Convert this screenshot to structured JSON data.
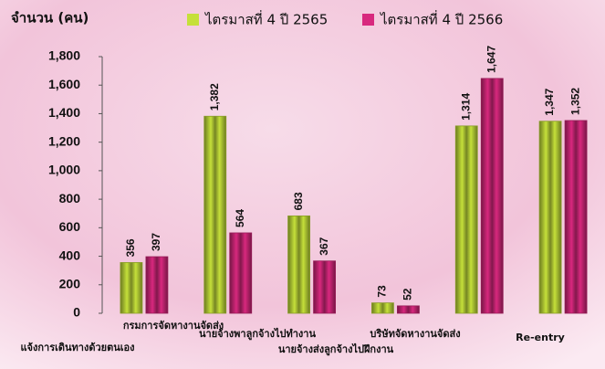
{
  "chart_data": {
    "type": "bar",
    "y_label": "จำนวน (คน)",
    "categories": [
      "แจ้งการเดินทางด้วยตนเอง",
      "กรมการจัดหางานจัดส่ง",
      "นายจ้างพาลูกจ้างไปทำงาน",
      "นายจ้างส่งลูกจ้างไปฝึกงาน",
      "บริษัทจัดหางานจัดส่ง",
      "Re-entry"
    ],
    "series": [
      {
        "name": "ไตรมาสที่ 4 ปี 2565",
        "color": "#c5e03a",
        "values": [
          356,
          1382,
          683,
          73,
          1314,
          1347
        ],
        "value_labels": [
          "356",
          "1,382",
          "683",
          "73",
          "1,314",
          "1,347"
        ]
      },
      {
        "name": "ไตรมาสที่ 4 ปี 2566",
        "color": "#d8287e",
        "values": [
          397,
          564,
          367,
          52,
          1647,
          1352
        ],
        "value_labels": [
          "397",
          "564",
          "367",
          "52",
          "1,647",
          "1,352"
        ]
      }
    ],
    "ylim": [
      0,
      1800
    ],
    "yticks": [
      0,
      200,
      400,
      600,
      800,
      {
        "value": 1000,
        "label": "1,000"
      },
      {
        "value": 1200,
        "label": "1,200"
      },
      {
        "value": 1400,
        "label": "1,400"
      },
      {
        "value": 1600,
        "label": "1,600"
      },
      {
        "value": 1800,
        "label": "1,800"
      }
    ],
    "legend": "top"
  }
}
